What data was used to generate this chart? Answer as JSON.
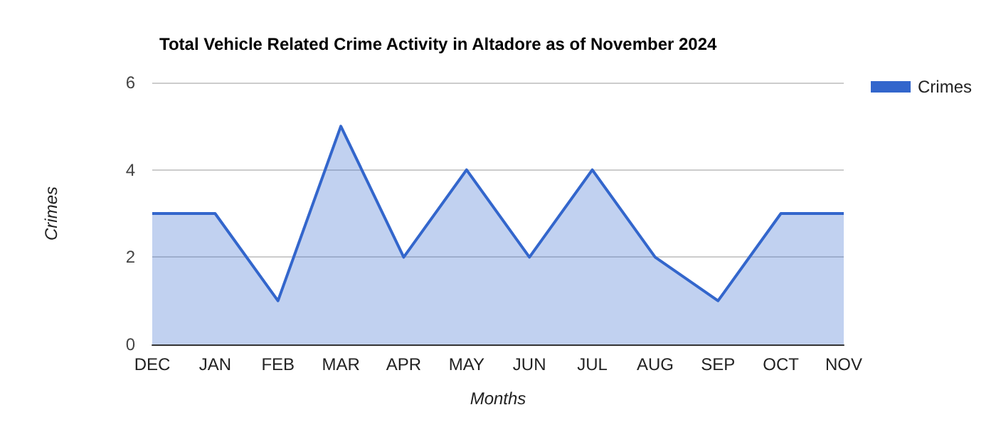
{
  "chart_data": {
    "type": "area",
    "title": "Total Vehicle Related Crime Activity in Altadore as of November 2024",
    "xlabel": "Months",
    "ylabel": "Crimes",
    "categories": [
      "DEC",
      "JAN",
      "FEB",
      "MAR",
      "APR",
      "MAY",
      "JUN",
      "JUL",
      "AUG",
      "SEP",
      "OCT",
      "NOV"
    ],
    "series": [
      {
        "name": "Crimes",
        "color": "#3366cc",
        "values": [
          3,
          3,
          1,
          5,
          2,
          4,
          2,
          4,
          2,
          1,
          3,
          3
        ]
      }
    ],
    "ylim": [
      0,
      6
    ],
    "yticks": [
      0,
      2,
      4,
      6
    ],
    "grid": "y",
    "legend": "top right",
    "marker": "none"
  }
}
